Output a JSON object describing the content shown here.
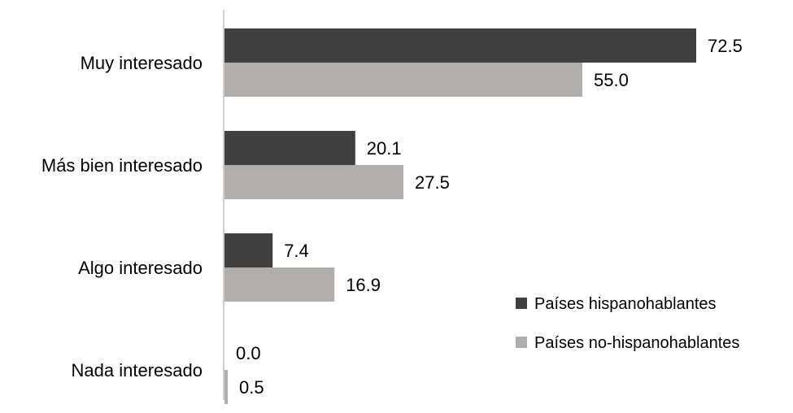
{
  "chart_data": {
    "type": "bar",
    "orientation": "horizontal",
    "title": "",
    "xlabel": "",
    "ylabel": "",
    "categories": [
      "Muy interesado",
      "Más bien interesado",
      "Algo interesado",
      "Nada interesado"
    ],
    "series": [
      {
        "name": "Países hispanohablantes",
        "color": "#404040",
        "values": [
          72.5,
          20.1,
          7.4,
          0.0
        ],
        "labels": [
          "72.5",
          "20.1",
          "7.4",
          "0.0"
        ]
      },
      {
        "name": "Países no-hispanohablantes",
        "color": "#b0adad",
        "values": [
          55.0,
          27.5,
          16.9,
          0.5
        ],
        "labels": [
          "55.0",
          "27.5",
          "16.9",
          "0.5"
        ]
      }
    ],
    "xlim": [
      0,
      80
    ],
    "grid": false,
    "legend_position": "bottom-right"
  }
}
